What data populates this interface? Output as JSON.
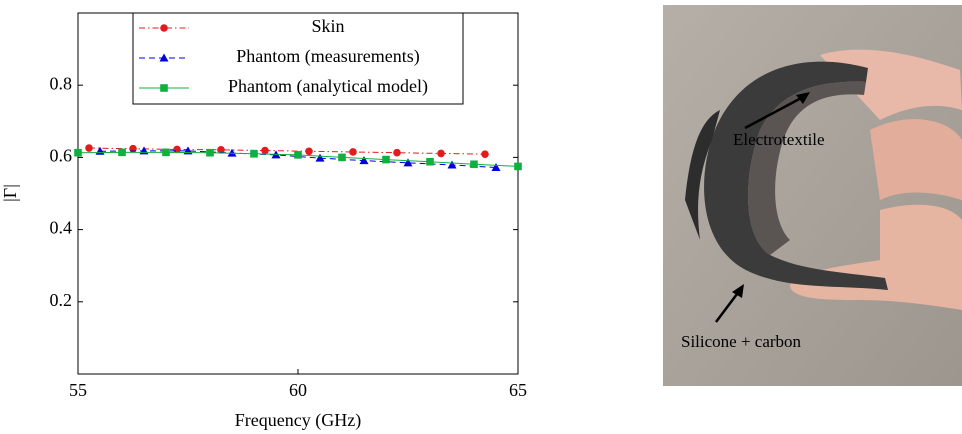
{
  "chart_data": {
    "type": "line",
    "xlabel": "Frequency (GHz)",
    "ylabel": "|Γ|",
    "xlim": [
      55,
      65
    ],
    "ylim": [
      0,
      1
    ],
    "xticks": [
      55,
      60,
      65
    ],
    "yticks": [
      0.2,
      0.4,
      0.6,
      0.8
    ],
    "legend": "upper center",
    "series": [
      {
        "name": "Skin",
        "color": "#e41a1c",
        "marker": "circle",
        "linestyle": "dashdot",
        "x": [
          55.25,
          56.25,
          57.25,
          58.25,
          59.25,
          60.25,
          61.25,
          62.25,
          63.25,
          64.25
        ],
        "values": [
          0.626,
          0.624,
          0.622,
          0.621,
          0.619,
          0.617,
          0.615,
          0.613,
          0.611,
          0.609
        ]
      },
      {
        "name": "Phantom (measurements)",
        "color": "#0000e0",
        "marker": "triangle",
        "linestyle": "dashed",
        "x": [
          55.5,
          56.5,
          57.5,
          58.5,
          59.5,
          60.5,
          61.5,
          62.5,
          63.5,
          64.5
        ],
        "values": [
          0.617,
          0.618,
          0.618,
          0.612,
          0.607,
          0.598,
          0.591,
          0.585,
          0.579,
          0.572
        ]
      },
      {
        "name": "Phantom (analytical model)",
        "color": "#10b040",
        "marker": "square",
        "linestyle": "solid",
        "x": [
          55,
          56,
          57,
          58,
          59,
          60,
          61,
          62,
          63,
          64,
          65
        ],
        "values": [
          0.613,
          0.614,
          0.614,
          0.613,
          0.61,
          0.607,
          0.6,
          0.594,
          0.588,
          0.581,
          0.575
        ]
      }
    ]
  },
  "photo": {
    "labels": [
      "Electrotextile",
      "Silicone + carbon"
    ]
  }
}
